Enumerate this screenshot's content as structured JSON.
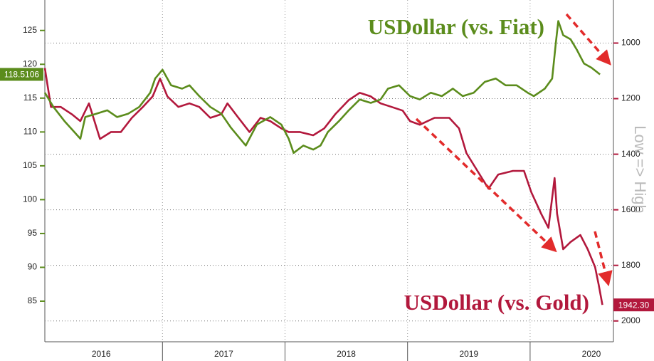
{
  "chart_data": {
    "type": "line",
    "xlim": [
      2016.04,
      2020.68
    ],
    "xticks": [
      {
        "value": 2016.5,
        "label": "2016"
      },
      {
        "value": 2017.5,
        "label": "2017"
      },
      {
        "value": 2018.5,
        "label": "2018"
      },
      {
        "value": 2019.5,
        "label": "2019"
      },
      {
        "value": 2020.5,
        "label": "2020"
      }
    ],
    "ylim": [
      79,
      129.5
    ],
    "yticks": [
      85,
      90,
      95,
      100,
      105,
      110,
      115,
      120,
      125
    ],
    "y2lim": [
      2075,
      845
    ],
    "y2ticks": [
      1000,
      1200,
      1400,
      1600,
      1800,
      2000
    ],
    "y2label": "Low => High",
    "grid": true,
    "series": [
      {
        "name": "USDollar (vs. Fiat)",
        "color": "#5b8c1c",
        "axis": "y",
        "x": [
          2016.04,
          2016.11,
          2016.2,
          2016.28,
          2016.33,
          2016.37,
          2016.46,
          2016.55,
          2016.63,
          2016.72,
          2016.81,
          2016.9,
          2016.94,
          2017.0,
          2017.07,
          2017.16,
          2017.22,
          2017.3,
          2017.39,
          2017.48,
          2017.56,
          2017.68,
          2017.77,
          2017.88,
          2017.97,
          2018.03,
          2018.07,
          2018.15,
          2018.23,
          2018.29,
          2018.35,
          2018.44,
          2018.52,
          2018.61,
          2018.7,
          2018.78,
          2018.84,
          2018.93,
          2019.02,
          2019.1,
          2019.19,
          2019.28,
          2019.37,
          2019.45,
          2019.54,
          2019.63,
          2019.72,
          2019.8,
          2019.89,
          2019.98,
          2020.03,
          2020.12,
          2020.18,
          2020.21,
          2020.23,
          2020.27,
          2020.33,
          2020.38,
          2020.44,
          2020.5,
          2020.57
        ],
        "values": [
          115.8,
          113.7,
          111.6,
          110.0,
          109.0,
          112.2,
          112.7,
          113.2,
          112.2,
          112.7,
          113.7,
          115.8,
          117.9,
          119.2,
          116.9,
          116.4,
          116.9,
          115.3,
          113.7,
          112.7,
          110.6,
          108.0,
          111.1,
          112.2,
          111.1,
          109.0,
          106.9,
          108.0,
          107.4,
          108.0,
          110.0,
          111.6,
          113.2,
          114.8,
          114.3,
          114.8,
          116.4,
          116.9,
          115.3,
          114.8,
          115.8,
          115.3,
          116.4,
          115.3,
          115.8,
          117.4,
          117.9,
          116.9,
          116.9,
          115.8,
          115.3,
          116.4,
          117.9,
          123.2,
          126.4,
          124.3,
          123.7,
          122.2,
          120.1,
          119.5,
          118.5106
        ],
        "last_value": 118.5106
      },
      {
        "name": "USDollar (vs. Gold)",
        "color": "#b2183c",
        "axis": "y2",
        "x": [
          2016.04,
          2016.09,
          2016.17,
          2016.26,
          2016.33,
          2016.4,
          2016.49,
          2016.58,
          2016.66,
          2016.75,
          2016.84,
          2016.92,
          2016.98,
          2017.04,
          2017.13,
          2017.22,
          2017.3,
          2017.39,
          2017.48,
          2017.53,
          2017.62,
          2017.71,
          2017.8,
          2017.88,
          2017.97,
          2018.03,
          2018.12,
          2018.23,
          2018.32,
          2018.41,
          2018.52,
          2018.61,
          2018.7,
          2018.78,
          2018.87,
          2018.96,
          2019.02,
          2019.1,
          2019.22,
          2019.34,
          2019.42,
          2019.48,
          2019.57,
          2019.66,
          2019.74,
          2019.86,
          2019.95,
          2020.01,
          2020.09,
          2020.15,
          2020.2,
          2020.22,
          2020.27,
          2020.33,
          2020.41,
          2020.47,
          2020.53,
          2020.56,
          2020.59
        ],
        "values": [
          1090,
          1230,
          1230,
          1256,
          1281,
          1217,
          1345,
          1320,
          1320,
          1269,
          1230,
          1192,
          1128,
          1192,
          1230,
          1217,
          1230,
          1269,
          1256,
          1217,
          1269,
          1320,
          1269,
          1281,
          1307,
          1320,
          1320,
          1332,
          1307,
          1256,
          1205,
          1179,
          1192,
          1217,
          1230,
          1243,
          1281,
          1294,
          1269,
          1269,
          1307,
          1396,
          1460,
          1524,
          1473,
          1460,
          1460,
          1537,
          1614,
          1665,
          1486,
          1614,
          1742,
          1716,
          1691,
          1742,
          1806,
          1870,
          1942.3
        ],
        "last_value": {
          "value": 1942.3,
          "label": "1942.30"
        }
      }
    ]
  }
}
